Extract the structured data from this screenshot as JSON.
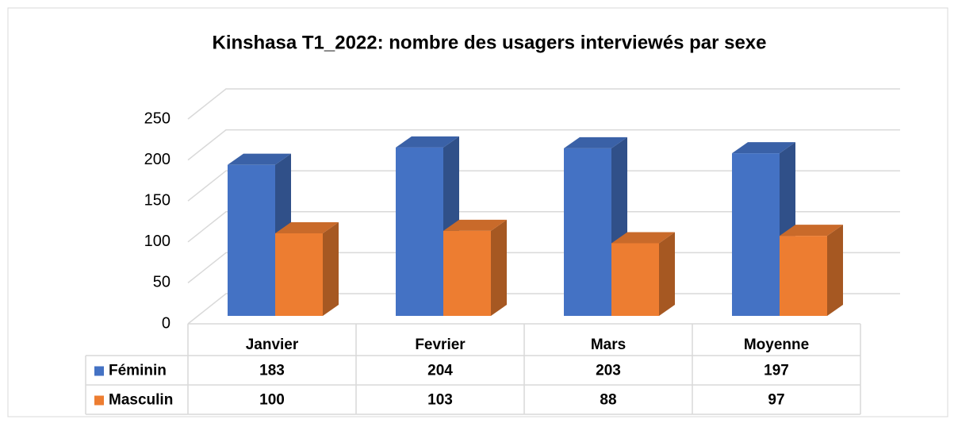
{
  "chart_data": {
    "type": "bar3d",
    "title": "Kinshasa T1_2022: nombre des usagers interviewés par sexe",
    "categories": [
      "Janvier",
      "Fevrier",
      "Mars",
      "Moyenne"
    ],
    "series": [
      {
        "name": "Féminin",
        "color": "#4472c4",
        "values": [
          183,
          204,
          203,
          197
        ]
      },
      {
        "name": "Masculin",
        "color": "#ed7d31",
        "values": [
          100,
          103,
          88,
          97
        ]
      }
    ],
    "ylim": [
      0,
      250
    ],
    "yticks": [
      0,
      50,
      100,
      150,
      200,
      250
    ],
    "grid": true,
    "data_table": true
  }
}
